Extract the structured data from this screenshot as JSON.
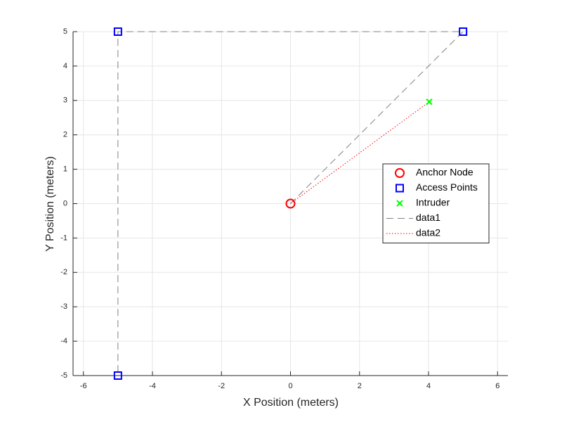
{
  "chart_data": {
    "type": "scatter",
    "xlabel": "X Position (meters)",
    "ylabel": "Y Position (meters)",
    "xlim": [
      -6.3,
      6.3
    ],
    "ylim": [
      -5,
      5
    ],
    "xticks": [
      -6,
      -4,
      -2,
      0,
      2,
      4,
      6
    ],
    "yticks": [
      -5,
      -4,
      -3,
      -2,
      -1,
      0,
      1,
      2,
      3,
      4,
      5
    ],
    "grid": true,
    "legend": "right",
    "series": [
      {
        "name": "Anchor Node",
        "color": "#ff0000",
        "marker": "o",
        "x": [
          0
        ],
        "y": [
          0
        ]
      },
      {
        "name": "Access Points",
        "color": "#0000ff",
        "marker": "s",
        "x": [
          -5,
          5,
          -5
        ],
        "y": [
          5,
          5,
          -5
        ]
      },
      {
        "name": "Intruder",
        "color": "#00ff00",
        "marker": "x",
        "x": [
          4.02
        ],
        "y": [
          2.96
        ]
      },
      {
        "name": "data1",
        "color": "#808080",
        "line": "dash",
        "x": [
          0,
          5,
          -5,
          -5
        ],
        "y": [
          0,
          5,
          5,
          -5
        ]
      },
      {
        "name": "data2",
        "color": "#ff0000",
        "line": "dot",
        "x": [
          0,
          4.02
        ],
        "y": [
          0,
          2.96
        ]
      }
    ]
  }
}
